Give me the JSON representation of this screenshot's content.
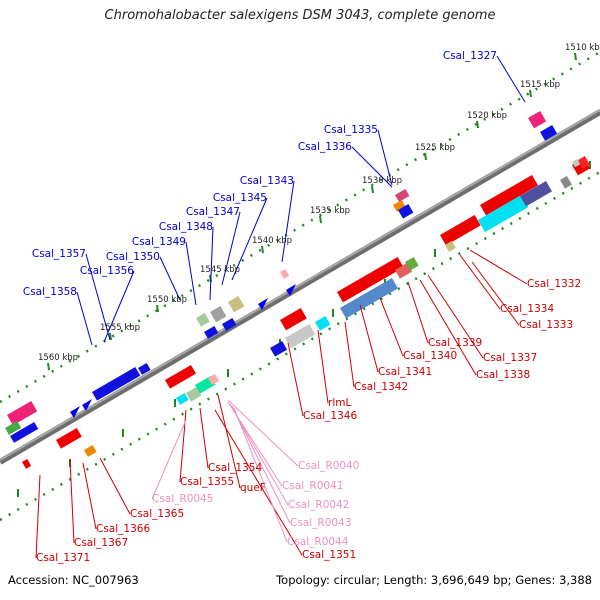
{
  "title": "Chromohalobacter salexigens DSM 3043, complete genome",
  "footer": {
    "accession": "Accession: NC_007963",
    "topology": "Topology: circular; Length: 3,696,649 bp; Genes: 3,388"
  },
  "ruler_ticks": [
    "1510 kbp",
    "1515 kbp",
    "1520 kbp",
    "1525 kbp",
    "1530 kbp",
    "1535 kbp",
    "1540 kbp",
    "1545 kbp",
    "1550 kbp",
    "1555 kbp",
    "1560 kbp"
  ],
  "labels_forward": [
    "Csal_1327",
    "Csal_1335",
    "Csal_1336",
    "Csal_1343",
    "Csal_1345",
    "Csal_1347",
    "Csal_1348",
    "Csal_1349",
    "Csal_1350",
    "Csal_1357",
    "Csal_1356",
    "Csal_1358"
  ],
  "labels_reverse": [
    "Csal_1332",
    "Csal_1334",
    "Csal_1333",
    "Csal_1337",
    "Csal_1338",
    "Csal_1339",
    "Csal_1340",
    "Csal_1341",
    "Csal_1342",
    "rlmL",
    "Csal_1346",
    "Csal_1354",
    "Csal_1355",
    "queF",
    "Csal_1365",
    "Csal_1366",
    "Csal_1367",
    "Csal_1371",
    "Csal_1351"
  ],
  "labels_rna": [
    "Csal_R0040",
    "Csal_R0041",
    "Csal_R0042",
    "Csal_R0043",
    "Csal_R0044",
    "Csal_R0045"
  ],
  "colors": {
    "forward_gene": "#0000ee",
    "reverse_gene": "#ee0000",
    "rna_label": "#f090c0",
    "backbone": "#888888",
    "ruler_dots": "#228822",
    "forward_label": "#0000cc",
    "reverse_label": "#cc0000"
  }
}
